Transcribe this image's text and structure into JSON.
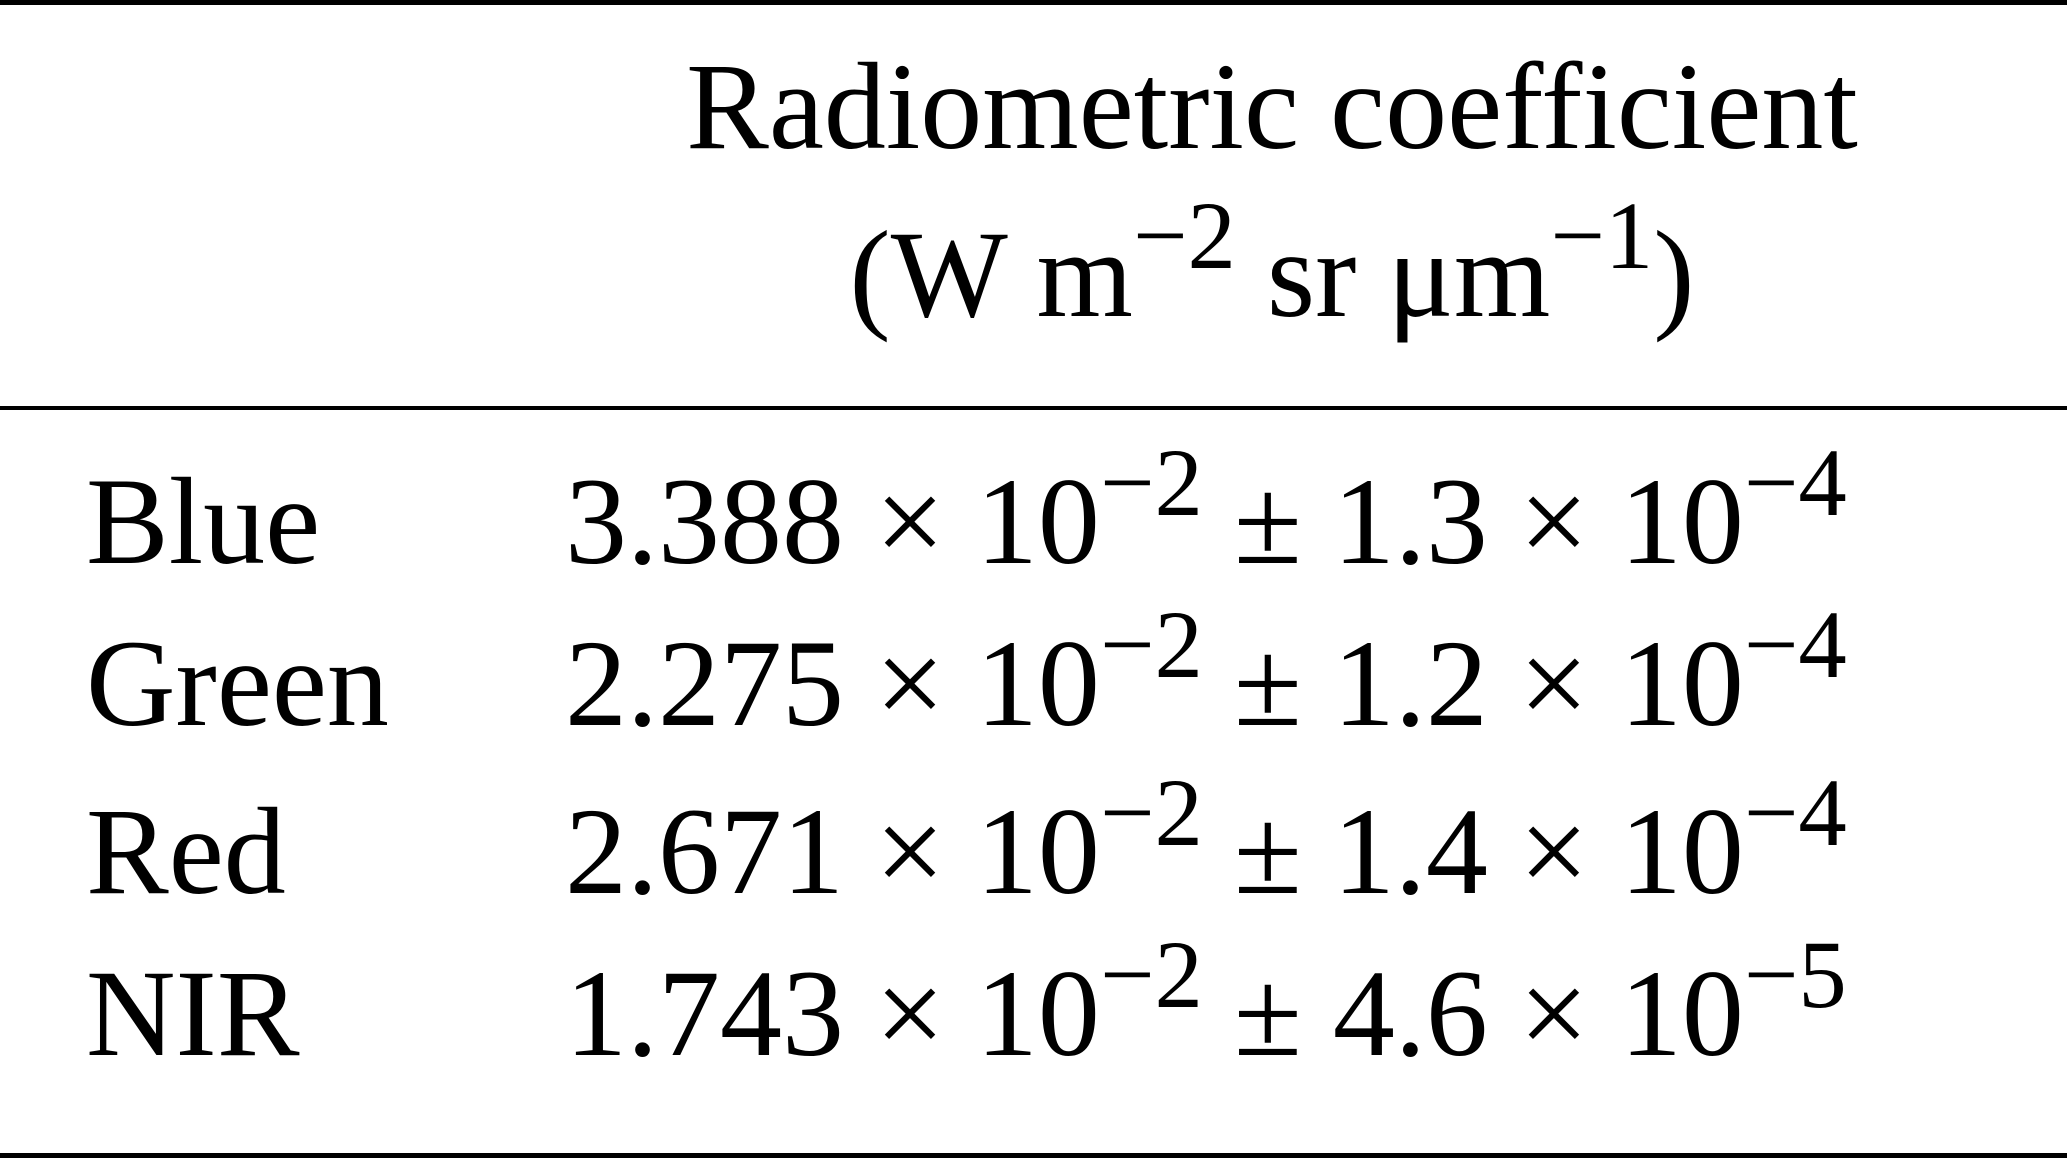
{
  "table": {
    "header": {
      "title": "Radiometric coefficient",
      "unit": [
        {
          "base": "(W m",
          "sup": "−2"
        },
        {
          "base": " sr μm",
          "sup": "−1"
        },
        {
          "base": ")"
        }
      ]
    },
    "rows": [
      {
        "label": "Blue",
        "value": [
          {
            "base": "3.388 × 10",
            "sup": "−2"
          },
          {
            "base": " ± 1.3 × 10",
            "sup": "−4"
          }
        ]
      },
      {
        "label": "Green",
        "value": [
          {
            "base": "2.275 × 10",
            "sup": "−2"
          },
          {
            "base": " ± 1.2 × 10",
            "sup": "−4"
          }
        ]
      },
      {
        "label": "Red",
        "value": [
          {
            "base": "2.671 × 10",
            "sup": "−2"
          },
          {
            "base": " ± 1.4 × 10",
            "sup": "−4"
          }
        ]
      },
      {
        "label": "NIR",
        "value": [
          {
            "base": "1.743 × 10",
            "sup": "−2"
          },
          {
            "base": " ± 4.6 × 10",
            "sup": "−5"
          }
        ]
      }
    ]
  }
}
